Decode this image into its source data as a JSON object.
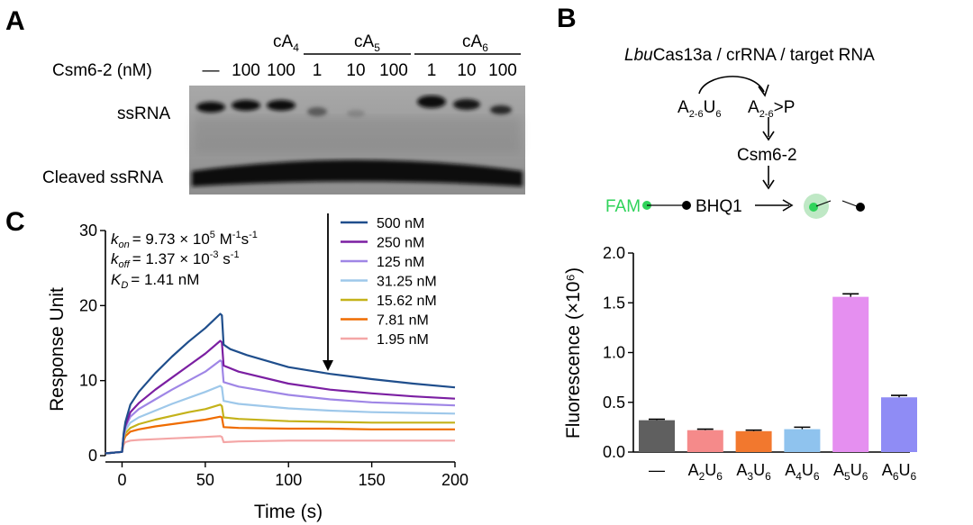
{
  "panelA": {
    "letter": "A",
    "row_label": "Csm6-2 (nM)",
    "groups": [
      {
        "base": "cA",
        "sub": "4"
      },
      {
        "base": "cA",
        "sub": "5"
      },
      {
        "base": "cA",
        "sub": "6"
      }
    ],
    "lanes": [
      "—",
      "100",
      "100",
      "1",
      "10",
      "100",
      "1",
      "10",
      "100"
    ],
    "band_labels": {
      "ssrna": "ssRNA",
      "cleaved": "Cleaved ssRNA"
    }
  },
  "panelB": {
    "letter": "B",
    "enzyme_italic": "Lbu",
    "enzyme_rest": "Cas13a / crRNA / target RNA",
    "substrate": {
      "a": "A",
      "a_sub": "2-6",
      "u": "U",
      "u_sub": "6"
    },
    "product": {
      "a": "A",
      "a_sub": "2-6",
      "rest": ">P"
    },
    "protein": "Csm6-2",
    "fam": "FAM",
    "bhq": "BHQ1"
  },
  "panelC": {
    "letter": "C",
    "kon": {
      "k": "k",
      "sub": "on",
      "value": "= 9.73 × 10",
      "exp": "5",
      "unit": " M",
      "unit_exp": "-1",
      "unit2": "s",
      "unit2_exp": "-1"
    },
    "koff": {
      "k": "k",
      "sub": "off",
      "value": "= 1.37 × 10",
      "exp": "-3",
      "unit": " s",
      "unit_exp": "-1"
    },
    "kd": {
      "k": "K",
      "sub": "D",
      "value": "= 1.41 nM"
    }
  },
  "chart_data": [
    {
      "type": "line",
      "panel": "C",
      "xlabel": "Time (s)",
      "ylabel": "Response Unit",
      "xlim": [
        -10,
        200
      ],
      "ylim": [
        0,
        30
      ],
      "xticks": [
        0,
        50,
        100,
        150,
        200
      ],
      "yticks": [
        0,
        10,
        20,
        30
      ],
      "legend_position": "top-right",
      "series": [
        {
          "name": "500 nM",
          "color": "#1f4e8c",
          "points": [
            [
              -10,
              0.3
            ],
            [
              0,
              0.5
            ],
            [
              1,
              3
            ],
            [
              2,
              4.5
            ],
            [
              5,
              6.8
            ],
            [
              10,
              8.5
            ],
            [
              20,
              11
            ],
            [
              30,
              13.2
            ],
            [
              40,
              15.2
            ],
            [
              50,
              17
            ],
            [
              59,
              18.9
            ],
            [
              60,
              18.7
            ],
            [
              61,
              14.8
            ],
            [
              65,
              14.2
            ],
            [
              75,
              13.4
            ],
            [
              100,
              11.8
            ],
            [
              125,
              10.9
            ],
            [
              150,
              10.2
            ],
            [
              175,
              9.6
            ],
            [
              200,
              9.1
            ]
          ]
        },
        {
          "name": "250 nM",
          "color": "#7b1fa2",
          "points": [
            [
              -10,
              0.3
            ],
            [
              0,
              0.5
            ],
            [
              1,
              2.8
            ],
            [
              2,
              4
            ],
            [
              5,
              5.8
            ],
            [
              10,
              7
            ],
            [
              20,
              8.8
            ],
            [
              30,
              10.4
            ],
            [
              40,
              12
            ],
            [
              50,
              13.6
            ],
            [
              59,
              15.3
            ],
            [
              60,
              15.1
            ],
            [
              61,
              12
            ],
            [
              70,
              11.2
            ],
            [
              100,
              9.6
            ],
            [
              125,
              8.8
            ],
            [
              150,
              8.3
            ],
            [
              175,
              7.9
            ],
            [
              200,
              7.6
            ]
          ]
        },
        {
          "name": "125 nM",
          "color": "#9f86e6",
          "points": [
            [
              -10,
              0.3
            ],
            [
              0,
              0.5
            ],
            [
              1,
              2.7
            ],
            [
              2,
              3.8
            ],
            [
              5,
              5.2
            ],
            [
              10,
              6.2
            ],
            [
              20,
              7.5
            ],
            [
              30,
              8.8
            ],
            [
              40,
              10
            ],
            [
              50,
              11.2
            ],
            [
              59,
              12.7
            ],
            [
              60,
              12.5
            ],
            [
              61,
              9.8
            ],
            [
              70,
              9.2
            ],
            [
              100,
              8.1
            ],
            [
              125,
              7.5
            ],
            [
              150,
              7.1
            ],
            [
              175,
              6.9
            ],
            [
              200,
              6.7
            ]
          ]
        },
        {
          "name": "31.25 nM",
          "color": "#9ec8ea",
          "points": [
            [
              -10,
              0.3
            ],
            [
              0,
              0.5
            ],
            [
              1,
              2.5
            ],
            [
              2,
              3.4
            ],
            [
              5,
              4.4
            ],
            [
              10,
              5.1
            ],
            [
              20,
              6
            ],
            [
              30,
              6.9
            ],
            [
              40,
              7.7
            ],
            [
              50,
              8.5
            ],
            [
              59,
              9.3
            ],
            [
              60,
              9.1
            ],
            [
              61,
              7.3
            ],
            [
              70,
              6.9
            ],
            [
              100,
              6.3
            ],
            [
              125,
              6
            ],
            [
              150,
              5.8
            ],
            [
              175,
              5.7
            ],
            [
              200,
              5.6
            ]
          ]
        },
        {
          "name": "15.62 nM",
          "color": "#c4b21a",
          "points": [
            [
              -10,
              0.3
            ],
            [
              0,
              0.5
            ],
            [
              1,
              2.3
            ],
            [
              2,
              3
            ],
            [
              5,
              3.7
            ],
            [
              10,
              4.2
            ],
            [
              20,
              4.8
            ],
            [
              30,
              5.3
            ],
            [
              40,
              5.8
            ],
            [
              50,
              6.2
            ],
            [
              59,
              6.8
            ],
            [
              60,
              6.6
            ],
            [
              61,
              5.1
            ],
            [
              70,
              4.9
            ],
            [
              100,
              4.6
            ],
            [
              125,
              4.5
            ],
            [
              150,
              4.4
            ],
            [
              175,
              4.4
            ],
            [
              200,
              4.4
            ]
          ]
        },
        {
          "name": "7.81 nM",
          "color": "#ef6c00",
          "points": [
            [
              -10,
              0.3
            ],
            [
              0,
              0.5
            ],
            [
              1,
              2
            ],
            [
              2,
              2.6
            ],
            [
              5,
              3.2
            ],
            [
              10,
              3.5
            ],
            [
              20,
              3.9
            ],
            [
              30,
              4.2
            ],
            [
              40,
              4.5
            ],
            [
              50,
              4.8
            ],
            [
              59,
              5.2
            ],
            [
              60,
              5.1
            ],
            [
              61,
              3.8
            ],
            [
              70,
              3.7
            ],
            [
              100,
              3.6
            ],
            [
              125,
              3.6
            ],
            [
              150,
              3.5
            ],
            [
              175,
              3.5
            ],
            [
              200,
              3.5
            ]
          ]
        },
        {
          "name": "1.95 nM",
          "color": "#f4a6a6",
          "points": [
            [
              -10,
              0.3
            ],
            [
              0,
              0.5
            ],
            [
              1,
              1.5
            ],
            [
              2,
              1.8
            ],
            [
              5,
              2
            ],
            [
              10,
              2.1
            ],
            [
              20,
              2.2
            ],
            [
              30,
              2.3
            ],
            [
              40,
              2.4
            ],
            [
              50,
              2.5
            ],
            [
              59,
              2.6
            ],
            [
              60,
              2.5
            ],
            [
              61,
              1.8
            ],
            [
              70,
              1.9
            ],
            [
              100,
              2
            ],
            [
              125,
              2
            ],
            [
              150,
              2
            ],
            [
              175,
              2
            ],
            [
              200,
              2
            ]
          ]
        }
      ]
    },
    {
      "type": "bar",
      "panel": "B",
      "ylabel": "Fluorescence (×10⁶)",
      "ylim": [
        0,
        2.0
      ],
      "yticks": [
        0.0,
        0.5,
        1.0,
        1.5,
        2.0
      ],
      "categories": [
        {
          "label": "—"
        },
        {
          "base": "A",
          "sub1": "2",
          "mid": "U",
          "sub2": "6"
        },
        {
          "base": "A",
          "sub1": "3",
          "mid": "U",
          "sub2": "6"
        },
        {
          "base": "A",
          "sub1": "4",
          "mid": "U",
          "sub2": "6"
        },
        {
          "base": "A",
          "sub1": "5",
          "mid": "U",
          "sub2": "6"
        },
        {
          "base": "A",
          "sub1": "6",
          "mid": "U",
          "sub2": "6"
        }
      ],
      "values": [
        0.32,
        0.22,
        0.21,
        0.23,
        1.56,
        0.55
      ],
      "errors": [
        0.01,
        0.01,
        0.01,
        0.02,
        0.03,
        0.02
      ],
      "colors": [
        "#5f5f5f",
        "#f58a8a",
        "#f2782e",
        "#8fc3ee",
        "#e58ff0",
        "#8f8cf5"
      ]
    }
  ],
  "colors": {
    "fam_green": "#2fd35a",
    "glow_green": "#bfe8c5",
    "black": "#000000"
  }
}
